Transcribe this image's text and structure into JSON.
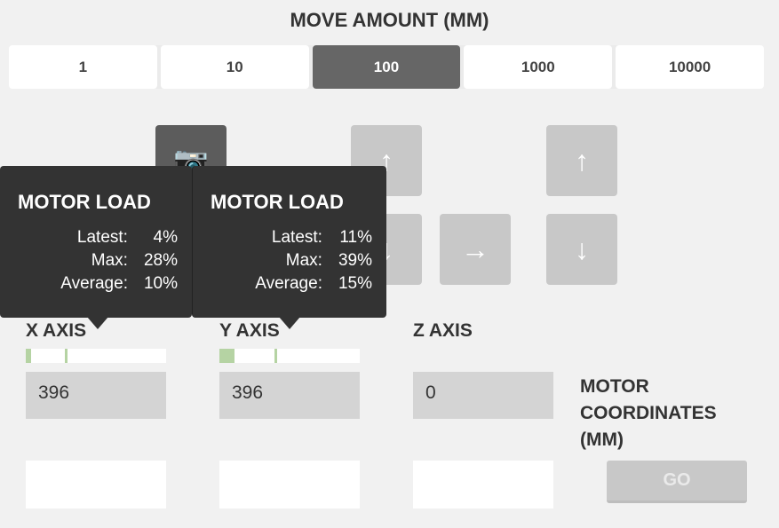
{
  "move_amount": {
    "title": "MOVE AMOUNT (MM)",
    "options": [
      "1",
      "10",
      "100",
      "1000",
      "10000"
    ],
    "selected": "100"
  },
  "controls": {
    "camera_icon": "camera-icon",
    "x_up": "arrow-up-icon",
    "x_down": "arrow-down-icon",
    "right": "arrow-right-icon",
    "z_up": "arrow-up-icon",
    "z_down": "arrow-down-icon"
  },
  "axes": [
    {
      "label": "X AXIS",
      "value": "396",
      "load_latest_pct": 4,
      "load_max_pct": 28
    },
    {
      "label": "Y AXIS",
      "value": "396",
      "load_latest_pct": 11,
      "load_max_pct": 39
    },
    {
      "label": "Z AXIS",
      "value": "0"
    }
  ],
  "tooltips": [
    {
      "title": "MOTOR LOAD",
      "rows": [
        {
          "k": "Latest:",
          "v": "4%"
        },
        {
          "k": "Max:",
          "v": "28%"
        },
        {
          "k": "Average:",
          "v": "10%"
        }
      ]
    },
    {
      "title": "MOTOR LOAD",
      "rows": [
        {
          "k": "Latest:",
          "v": "11%"
        },
        {
          "k": "Max:",
          "v": "39%"
        },
        {
          "k": "Average:",
          "v": "15%"
        }
      ]
    }
  ],
  "coords_label": [
    "MOTOR",
    "COORDINATES",
    "(MM)"
  ],
  "go_label": "GO",
  "colors": {
    "load": "#b5d3a3",
    "selected": "#666666",
    "tooltip": "#333333"
  }
}
